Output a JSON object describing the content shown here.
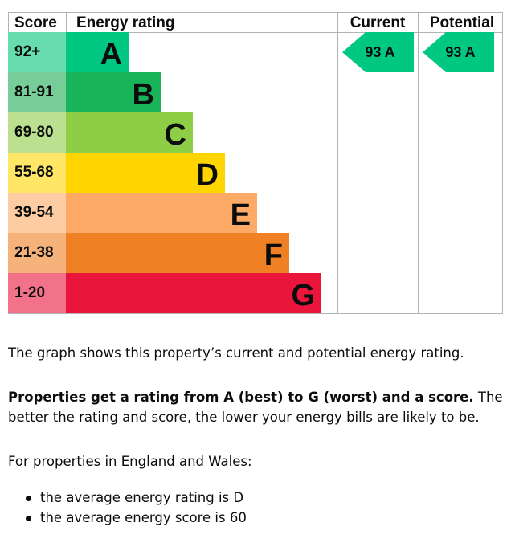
{
  "chart_data": {
    "type": "bar",
    "headers": {
      "score": "Score",
      "rating": "Energy rating",
      "current": "Current",
      "potential": "Potential"
    },
    "bands": [
      {
        "score": "92+",
        "letter": "A",
        "color": "#00c781",
        "score_bg": "#66dcaf"
      },
      {
        "score": "81-91",
        "letter": "B",
        "color": "#19b459",
        "score_bg": "#76cd98"
      },
      {
        "score": "69-80",
        "letter": "C",
        "color": "#8dce46",
        "score_bg": "#bbe190"
      },
      {
        "score": "55-68",
        "letter": "D",
        "color": "#ffd500",
        "score_bg": "#ffe666"
      },
      {
        "score": "39-54",
        "letter": "E",
        "color": "#fcaa65",
        "score_bg": "#fdcca3"
      },
      {
        "score": "21-38",
        "letter": "F",
        "color": "#ef8023",
        "score_bg": "#f5b37b"
      },
      {
        "score": "1-20",
        "letter": "G",
        "color": "#e9153b",
        "score_bg": "#f27389"
      }
    ],
    "current": {
      "score": 93,
      "letter": "A",
      "label": "93  A"
    },
    "potential": {
      "score": 93,
      "letter": "A",
      "label": "93  A"
    }
  },
  "text": {
    "intro": "The graph shows this property’s current and potential energy rating.",
    "rating_bold": "Properties get a rating from A (best) to G (worst) and a score.",
    "rating_rest": " The better the rating and score, the lower your energy bills are likely to be.",
    "region": "For properties in England and Wales:",
    "bullets": [
      "the average energy rating is D",
      "the average energy score is 60"
    ]
  }
}
